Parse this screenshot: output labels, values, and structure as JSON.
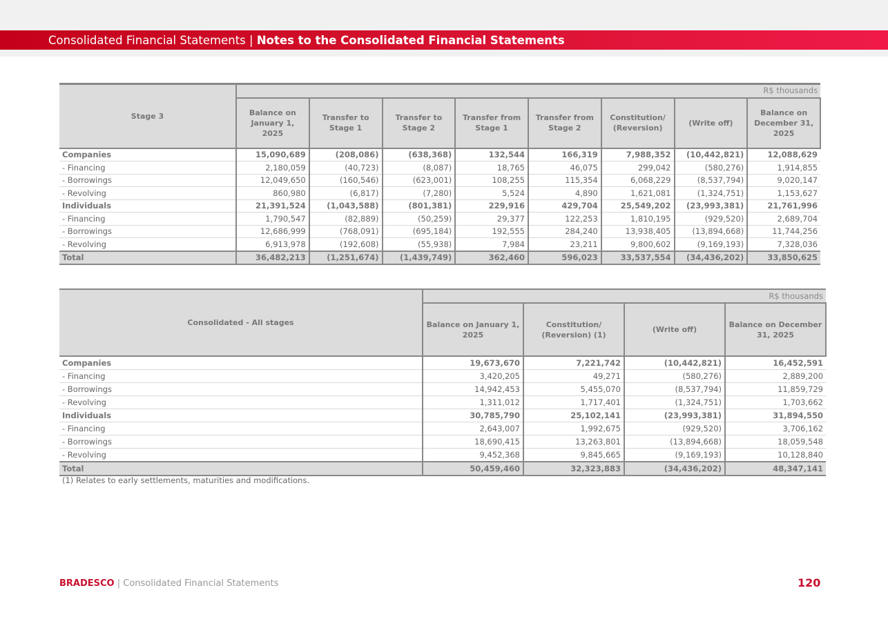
{
  "header": {
    "section": "Consolidated Financial Statements",
    "separator": " | ",
    "subsection": "Notes to the Consolidated Financial Statements"
  },
  "table1": {
    "title": "Stage 3",
    "units": "R$ thousands",
    "columns": [
      "Balance on January 1, 2025",
      "Transfer to Stage 1",
      "Transfer to Stage 2",
      "Transfer from Stage 1",
      "Transfer from Stage 2",
      "Constitution/ (Reversion)",
      "(Write off)",
      "Balance on December 31, 2025"
    ],
    "rows": [
      {
        "label": "Companies",
        "type": "bold",
        "values": [
          "15,090,689",
          "(208,086)",
          "(638,368)",
          "132,544",
          "166,319",
          "7,988,352",
          "(10,442,821)",
          "12,088,629"
        ]
      },
      {
        "label": "- Financing",
        "type": "",
        "values": [
          "2,180,059",
          "(40,723)",
          "(8,087)",
          "18,765",
          "46,075",
          "299,042",
          "(580,276)",
          "1,914,855"
        ]
      },
      {
        "label": "- Borrowings",
        "type": "",
        "values": [
          "12,049,650",
          "(160,546)",
          "(623,001)",
          "108,255",
          "115,354",
          "6,068,229",
          "(8,537,794)",
          "9,020,147"
        ]
      },
      {
        "label": "- Revolving",
        "type": "",
        "values": [
          "860,980",
          "(6,817)",
          "(7,280)",
          "5,524",
          "4,890",
          "1,621,081",
          "(1,324,751)",
          "1,153,627"
        ]
      },
      {
        "label": "Individuals",
        "type": "bold",
        "values": [
          "21,391,524",
          "(1,043,588)",
          "(801,381)",
          "229,916",
          "429,704",
          "25,549,202",
          "(23,993,381)",
          "21,761,996"
        ]
      },
      {
        "label": "- Financing",
        "type": "",
        "values": [
          "1,790,547",
          "(82,889)",
          "(50,259)",
          "29,377",
          "122,253",
          "1,810,195",
          "(929,520)",
          "2,689,704"
        ]
      },
      {
        "label": "- Borrowings",
        "type": "",
        "values": [
          "12,686,999",
          "(768,091)",
          "(695,184)",
          "192,555",
          "284,240",
          "13,938,405",
          "(13,894,668)",
          "11,744,256"
        ]
      },
      {
        "label": "- Revolving",
        "type": "",
        "values": [
          "6,913,978",
          "(192,608)",
          "(55,938)",
          "7,984",
          "23,211",
          "9,800,602",
          "(9,169,193)",
          "7,328,036"
        ]
      },
      {
        "label": "Total",
        "type": "bold total",
        "values": [
          "36,482,213",
          "(1,251,674)",
          "(1,439,749)",
          "362,460",
          "596,023",
          "33,537,554",
          "(34,436,202)",
          "33,850,625"
        ]
      }
    ]
  },
  "table2": {
    "title": "Consolidated - All stages",
    "units": "R$ thousands",
    "columns": [
      "Balance on January 1, 2025",
      "Constitution/ (Reversion) (1)",
      "(Write off)",
      "Balance on December 31, 2025"
    ],
    "rows": [
      {
        "label": "Companies",
        "type": "bold",
        "values": [
          "19,673,670",
          "7,221,742",
          "(10,442,821)",
          "16,452,591"
        ]
      },
      {
        "label": "- Financing",
        "type": "",
        "values": [
          "3,420,205",
          "49,271",
          "(580,276)",
          "2,889,200"
        ]
      },
      {
        "label": "- Borrowings",
        "type": "",
        "values": [
          "14,942,453",
          "5,455,070",
          "(8,537,794)",
          "11,859,729"
        ]
      },
      {
        "label": "- Revolving",
        "type": "",
        "values": [
          "1,311,012",
          "1,717,401",
          "(1,324,751)",
          "1,703,662"
        ]
      },
      {
        "label": "Individuals",
        "type": "bold",
        "values": [
          "30,785,790",
          "25,102,141",
          "(23,993,381)",
          "31,894,550"
        ]
      },
      {
        "label": "- Financing",
        "type": "",
        "values": [
          "2,643,007",
          "1,992,675",
          "(929,520)",
          "3,706,162"
        ]
      },
      {
        "label": "- Borrowings",
        "type": "",
        "values": [
          "18,690,415",
          "13,263,801",
          "(13,894,668)",
          "18,059,548"
        ]
      },
      {
        "label": "- Revolving",
        "type": "",
        "values": [
          "9,452,368",
          "9,845,665",
          "(9,169,193)",
          "10,128,840"
        ]
      },
      {
        "label": "Total",
        "type": "bold total",
        "values": [
          "50,459,460",
          "32,323,883",
          "(34,436,202)",
          "48,347,141"
        ]
      }
    ],
    "footnote": "(1) Relates to early settlements, maturities and modifications."
  },
  "footer": {
    "brand": "BRADESCO",
    "separator": " | ",
    "doc": "Consolidated Financial Statements",
    "page": "120"
  }
}
